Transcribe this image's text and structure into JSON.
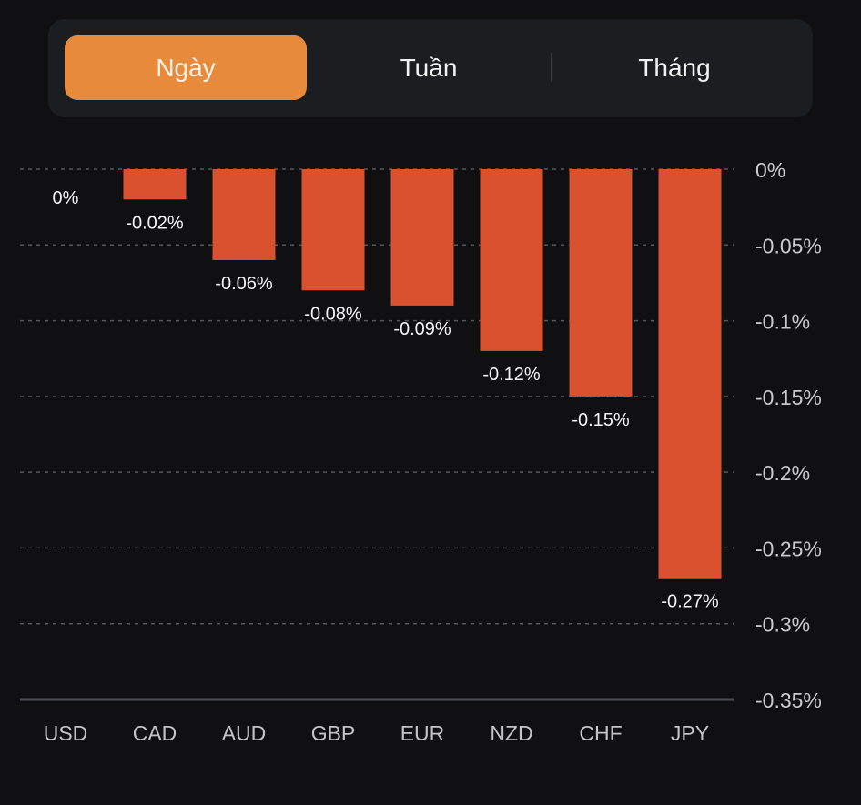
{
  "period_selector": {
    "tabs": [
      {
        "label": "Ngày",
        "active": true
      },
      {
        "label": "Tuần",
        "active": false
      },
      {
        "label": "Tháng",
        "active": false
      }
    ]
  },
  "colors": {
    "background": "#101012",
    "bar": "#d9512f",
    "active_tab": "#e88a3c",
    "segment_bg": "#1c1d21",
    "grid": "#55565c",
    "axis": "#4a4b50"
  },
  "chart_data": {
    "type": "bar",
    "title": "",
    "xlabel": "",
    "ylabel": "",
    "categories": [
      "USD",
      "CAD",
      "AUD",
      "GBP",
      "EUR",
      "NZD",
      "CHF",
      "JPY"
    ],
    "values": [
      0,
      -0.02,
      -0.06,
      -0.08,
      -0.09,
      -0.12,
      -0.15,
      -0.27
    ],
    "data_labels": [
      "0%",
      "-0.02%",
      "-0.06%",
      "-0.08%",
      "-0.09%",
      "-0.12%",
      "-0.15%",
      "-0.27%"
    ],
    "unit": "%",
    "ylim": [
      -0.35,
      0
    ],
    "yticks": [
      0,
      -0.05,
      -0.1,
      -0.15,
      -0.2,
      -0.25,
      -0.3,
      -0.35
    ],
    "ytick_labels": [
      "0%",
      "-0.05%",
      "-0.1%",
      "-0.15%",
      "-0.2%",
      "-0.25%",
      "-0.3%",
      "-0.35%"
    ],
    "y_axis_position": "right",
    "grid": true,
    "grid_style": "dashed",
    "legend": "none"
  }
}
